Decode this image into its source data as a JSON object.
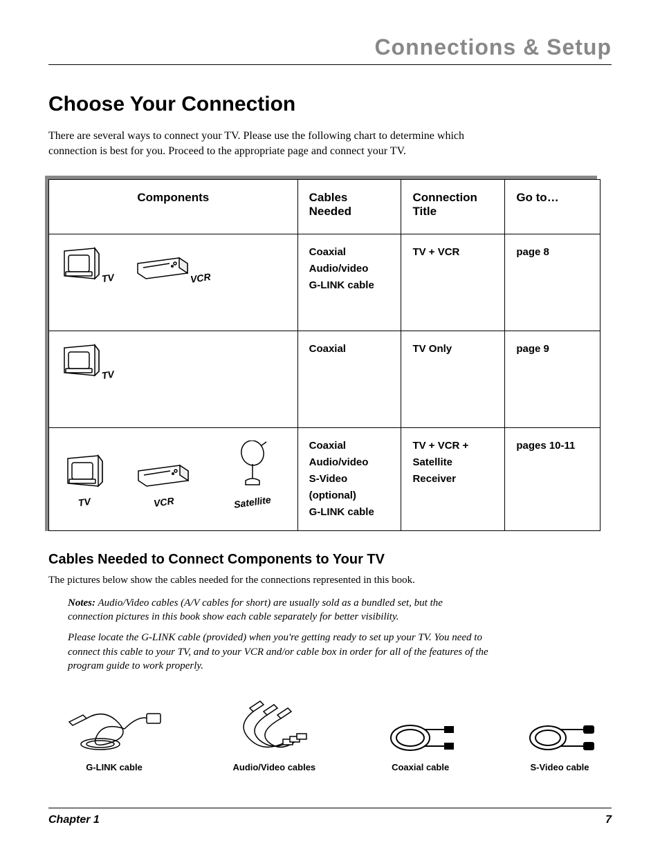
{
  "header": {
    "title": "Connections & Setup"
  },
  "section": {
    "title": "Choose Your Connection",
    "intro": "There are several ways to connect your TV. Please use the following chart to determine which connection is best for you. Proceed to the appropriate page and connect your TV."
  },
  "table": {
    "columns": {
      "components": "Components",
      "cables": "Cables Needed",
      "connection": "Connection Title",
      "goto": "Go to…"
    },
    "rows": [
      {
        "components": [
          {
            "label": "TV",
            "icon": "tv"
          },
          {
            "label": "VCR",
            "icon": "vcr"
          }
        ],
        "cables": "Coaxial\nAudio/video\nG-LINK cable",
        "connection": "TV + VCR",
        "goto": "page 8"
      },
      {
        "components": [
          {
            "label": "TV",
            "icon": "tv"
          }
        ],
        "cables": "Coaxial",
        "connection": "TV Only",
        "goto": "page 9"
      },
      {
        "components": [
          {
            "label": "TV",
            "icon": "tv"
          },
          {
            "label": "VCR",
            "icon": "vcr"
          },
          {
            "label": "Satellite",
            "icon": "satellite"
          }
        ],
        "cables": "Coaxial\nAudio/video\nS-Video (optional)\nG-LINK cable",
        "connection": "TV + VCR + Satellite Receiver",
        "goto": "pages 10-11"
      }
    ]
  },
  "cables_section": {
    "title": "Cables Needed to Connect Components to Your TV",
    "intro": "The pictures below show the cables needed for the connections represented in this book.",
    "notes_label": "Notes:",
    "note1": "Audio/Video cables (A/V cables for short) are usually sold as a bundled set, but the connection pictures in this book show each cable separately for better visibility.",
    "note2": "Please locate the G-LINK cable (provided) when you're getting ready to set up your TV. You need to connect this cable to your TV, and to your VCR and/or cable box in order for all of the features of the program guide to work properly.",
    "items": [
      {
        "label": "G-LINK cable",
        "icon": "glink"
      },
      {
        "label": "Audio/Video cables",
        "icon": "av"
      },
      {
        "label": "Coaxial cable",
        "icon": "coax"
      },
      {
        "label": "S-Video cable",
        "icon": "svideo"
      }
    ]
  },
  "footer": {
    "chapter": "Chapter 1",
    "page": "7"
  },
  "colors": {
    "header_gray": "#888888",
    "shadow_gray": "#888888",
    "text": "#000000",
    "bg": "#ffffff"
  }
}
